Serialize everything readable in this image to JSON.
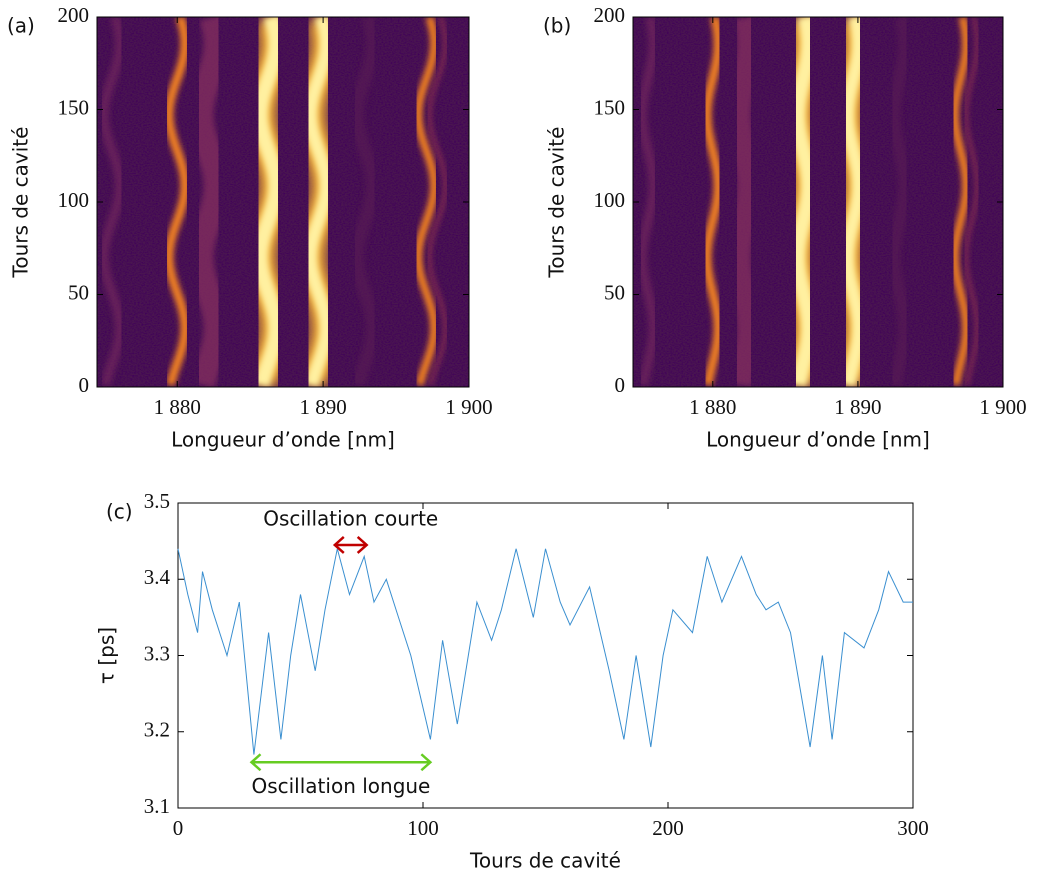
{
  "chart_data": [
    {
      "type": "heatmap",
      "panel": "(a)",
      "xlabel": "Longueur d’onde [nm]",
      "ylabel": "Tours de cavité",
      "xlim": [
        1874.5,
        1900
      ],
      "ylim": [
        0,
        200
      ],
      "xticks": [
        {
          "value": 1880,
          "label": "1 880"
        },
        {
          "value": 1890,
          "label": "1 890"
        },
        {
          "value": 1900,
          "label": "1 900"
        }
      ],
      "yticks": [
        0,
        50,
        100,
        150,
        200
      ]
    },
    {
      "type": "heatmap",
      "panel": "(b)",
      "xlabel": "Longueur d’onde [nm]",
      "ylabel": "Tours de cavité",
      "xlim": [
        1874.5,
        1900
      ],
      "ylim": [
        0,
        200
      ],
      "xticks": [
        {
          "value": 1880,
          "label": "1 880"
        },
        {
          "value": 1890,
          "label": "1 890"
        },
        {
          "value": 1900,
          "label": "1 900"
        }
      ],
      "yticks": [
        0,
        50,
        100,
        150,
        200
      ]
    },
    {
      "type": "line",
      "panel": "(c)",
      "xlabel": "Tours de cavité",
      "ylabel": "τ [ps]",
      "xlim": [
        0,
        300
      ],
      "ylim": [
        3.1,
        3.5
      ],
      "xticks": [
        0,
        100,
        200,
        300
      ],
      "yticks": [
        3.1,
        3.2,
        3.3,
        3.4,
        3.5
      ],
      "color": "#3a8fd0",
      "x": [
        0,
        4,
        8,
        10,
        14,
        20,
        25,
        31,
        37,
        42,
        46,
        50,
        56,
        60,
        65,
        70,
        76,
        80,
        85,
        90,
        95,
        103,
        108,
        114,
        122,
        128,
        132,
        138,
        145,
        150,
        156,
        160,
        168,
        176,
        182,
        187,
        193,
        198,
        202,
        210,
        216,
        222,
        230,
        236,
        240,
        245,
        250,
        258,
        263,
        267,
        272,
        280,
        286,
        290,
        296,
        300
      ],
      "values": [
        3.44,
        3.38,
        3.33,
        3.41,
        3.36,
        3.3,
        3.37,
        3.17,
        3.33,
        3.19,
        3.3,
        3.38,
        3.28,
        3.36,
        3.44,
        3.38,
        3.43,
        3.37,
        3.4,
        3.35,
        3.3,
        3.19,
        3.32,
        3.21,
        3.37,
        3.32,
        3.36,
        3.44,
        3.35,
        3.44,
        3.37,
        3.34,
        3.39,
        3.28,
        3.19,
        3.3,
        3.18,
        3.3,
        3.36,
        3.33,
        3.43,
        3.37,
        3.43,
        3.38,
        3.36,
        3.37,
        3.33,
        3.18,
        3.3,
        3.19,
        3.33,
        3.31,
        3.36,
        3.41,
        3.37,
        3.37
      ],
      "annotations": [
        {
          "text": "Oscillation courte",
          "x": [
            64,
            77
          ],
          "y": 3.445,
          "color": "#c00000"
        },
        {
          "text": "Oscillation longue",
          "x": [
            30,
            103
          ],
          "y": 3.16,
          "color": "#66cc22"
        }
      ]
    }
  ]
}
